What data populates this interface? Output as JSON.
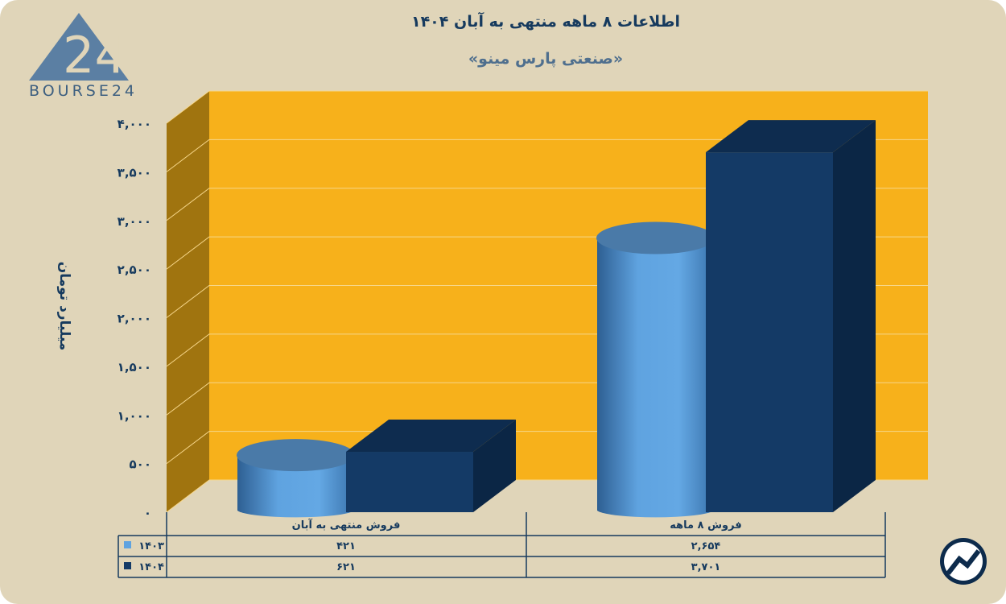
{
  "logo": {
    "text": "BOURSE24"
  },
  "chart_data": {
    "type": "bar",
    "title": "اطلاعات ۸ ماهه منتهی به آبان ۱۴۰۴",
    "subtitle": "«صنعتی پارس مینو»",
    "ylabel": "میلیارد تومان",
    "ylim": [
      0,
      4000
    ],
    "yticks": [
      "۰",
      "۵۰۰",
      "۱,۰۰۰",
      "۱,۵۰۰",
      "۲,۰۰۰",
      "۲,۵۰۰",
      "۳,۰۰۰",
      "۳,۵۰۰",
      "۴,۰۰۰"
    ],
    "ytick_values": [
      0,
      500,
      1000,
      1500,
      2000,
      2500,
      3000,
      3500,
      4000
    ],
    "categories": [
      "فروش منتهی به  آبان",
      "فروش ۸  ماهه"
    ],
    "series": [
      {
        "name": "۱۴۰۳",
        "values": [
          421,
          2654
        ],
        "labels": [
          "۴۲۱",
          "۲,۶۵۴"
        ],
        "color": "#5fa3e0",
        "shape": "cylinder"
      },
      {
        "name": "۱۴۰۴",
        "values": [
          621,
          3701
        ],
        "labels": [
          "۶۲۱",
          "۳,۷۰۱"
        ],
        "color": "#143a66",
        "shape": "box"
      }
    ],
    "grid": true,
    "legend": "data-table",
    "colors": {
      "plot_bg": "#f7b11b",
      "side_wall": "#a0740f",
      "page_bg": "#e0d5b9"
    }
  }
}
